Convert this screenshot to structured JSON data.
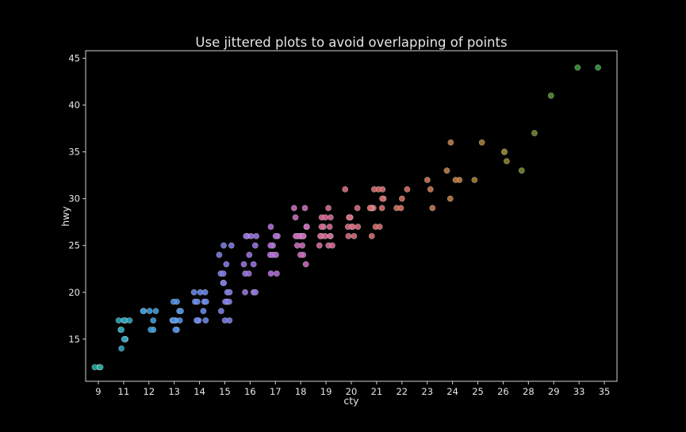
{
  "chart_data": {
    "type": "scatter",
    "title": "Use jittered plots to avoid overlapping of points",
    "xlabel": "cty",
    "ylabel": "hwy",
    "x_categories": [
      "9",
      "11",
      "12",
      "13",
      "14",
      "15",
      "16",
      "17",
      "18",
      "19",
      "20",
      "21",
      "22",
      "23",
      "24",
      "25",
      "26",
      "28",
      "29",
      "33",
      "35"
    ],
    "yticks": [
      15,
      20,
      25,
      30,
      35,
      40,
      45
    ],
    "ylim": [
      10.5,
      45.8
    ],
    "grid": false,
    "legend": "none",
    "colors": {
      "background": "#000000",
      "axes": "#cfcfcf",
      "text": "#e6e6e6",
      "9": "#27a899",
      "11": "#2aa3b7",
      "12": "#3a9ad8",
      "13": "#4a8ee6",
      "14": "#6484ea",
      "15": "#7a78e4",
      "16": "#9570dd",
      "17": "#b06ad6",
      "18": "#c968b8",
      "19": "#d46894",
      "20": "#d56a7c",
      "21": "#d46c6c",
      "22": "#d26f5e",
      "23": "#c97450",
      "24": "#bd7a40",
      "25": "#a67c32",
      "26": "#8c7f2a",
      "28": "#6f8a2c",
      "29": "#4f9030",
      "33": "#3c9538",
      "35": "#349a45"
    },
    "points": [
      {
        "x": "9",
        "y": 12
      },
      {
        "x": "9",
        "y": 12
      },
      {
        "x": "9",
        "y": 12
      },
      {
        "x": "9",
        "y": 12
      },
      {
        "x": "11",
        "y": 17
      },
      {
        "x": "11",
        "y": 17
      },
      {
        "x": "11",
        "y": 17
      },
      {
        "x": "11",
        "y": 17
      },
      {
        "x": "11",
        "y": 17
      },
      {
        "x": "11",
        "y": 16
      },
      {
        "x": "11",
        "y": 16
      },
      {
        "x": "11",
        "y": 15
      },
      {
        "x": "11",
        "y": 15
      },
      {
        "x": "11",
        "y": 15
      },
      {
        "x": "11",
        "y": 15
      },
      {
        "x": "11",
        "y": 15
      },
      {
        "x": "11",
        "y": 14
      },
      {
        "x": "12",
        "y": 18
      },
      {
        "x": "12",
        "y": 18
      },
      {
        "x": "12",
        "y": 18
      },
      {
        "x": "12",
        "y": 18
      },
      {
        "x": "12",
        "y": 17
      },
      {
        "x": "12",
        "y": 16
      },
      {
        "x": "12",
        "y": 16
      },
      {
        "x": "13",
        "y": 19
      },
      {
        "x": "13",
        "y": 19
      },
      {
        "x": "13",
        "y": 18
      },
      {
        "x": "13",
        "y": 18
      },
      {
        "x": "13",
        "y": 17
      },
      {
        "x": "13",
        "y": 17
      },
      {
        "x": "13",
        "y": 17
      },
      {
        "x": "13",
        "y": 17
      },
      {
        "x": "13",
        "y": 17
      },
      {
        "x": "13",
        "y": 17
      },
      {
        "x": "13",
        "y": 16
      },
      {
        "x": "13",
        "y": 16
      },
      {
        "x": "14",
        "y": 20
      },
      {
        "x": "14",
        "y": 20
      },
      {
        "x": "14",
        "y": 20
      },
      {
        "x": "14",
        "y": 19
      },
      {
        "x": "14",
        "y": 19
      },
      {
        "x": "14",
        "y": 19
      },
      {
        "x": "14",
        "y": 19
      },
      {
        "x": "14",
        "y": 18
      },
      {
        "x": "14",
        "y": 17
      },
      {
        "x": "14",
        "y": 17
      },
      {
        "x": "14",
        "y": 17
      },
      {
        "x": "14",
        "y": 17
      },
      {
        "x": "15",
        "y": 25
      },
      {
        "x": "15",
        "y": 25
      },
      {
        "x": "15",
        "y": 24
      },
      {
        "x": "15",
        "y": 23
      },
      {
        "x": "15",
        "y": 22
      },
      {
        "x": "15",
        "y": 22
      },
      {
        "x": "15",
        "y": 21
      },
      {
        "x": "15",
        "y": 21
      },
      {
        "x": "15",
        "y": 20
      },
      {
        "x": "15",
        "y": 20
      },
      {
        "x": "15",
        "y": 19
      },
      {
        "x": "15",
        "y": 19
      },
      {
        "x": "15",
        "y": 19
      },
      {
        "x": "15",
        "y": 19
      },
      {
        "x": "15",
        "y": 18
      },
      {
        "x": "15",
        "y": 17
      },
      {
        "x": "15",
        "y": 17
      },
      {
        "x": "16",
        "y": 26
      },
      {
        "x": "16",
        "y": 26
      },
      {
        "x": "16",
        "y": 26
      },
      {
        "x": "16",
        "y": 26
      },
      {
        "x": "16",
        "y": 25
      },
      {
        "x": "16",
        "y": 24
      },
      {
        "x": "16",
        "y": 23
      },
      {
        "x": "16",
        "y": 23
      },
      {
        "x": "16",
        "y": 22
      },
      {
        "x": "16",
        "y": 22
      },
      {
        "x": "16",
        "y": 20
      },
      {
        "x": "16",
        "y": 20
      },
      {
        "x": "16",
        "y": 20
      },
      {
        "x": "17",
        "y": 27
      },
      {
        "x": "17",
        "y": 26
      },
      {
        "x": "17",
        "y": 26
      },
      {
        "x": "17",
        "y": 25
      },
      {
        "x": "17",
        "y": 25
      },
      {
        "x": "17",
        "y": 24
      },
      {
        "x": "17",
        "y": 24
      },
      {
        "x": "17",
        "y": 24
      },
      {
        "x": "17",
        "y": 22
      },
      {
        "x": "17",
        "y": 22
      },
      {
        "x": "18",
        "y": 29
      },
      {
        "x": "18",
        "y": 29
      },
      {
        "x": "18",
        "y": 28
      },
      {
        "x": "18",
        "y": 27
      },
      {
        "x": "18",
        "y": 27
      },
      {
        "x": "18",
        "y": 26
      },
      {
        "x": "18",
        "y": 26
      },
      {
        "x": "18",
        "y": 26
      },
      {
        "x": "18",
        "y": 26
      },
      {
        "x": "18",
        "y": 26
      },
      {
        "x": "18",
        "y": 26
      },
      {
        "x": "18",
        "y": 26
      },
      {
        "x": "18",
        "y": 25
      },
      {
        "x": "18",
        "y": 25
      },
      {
        "x": "18",
        "y": 24
      },
      {
        "x": "18",
        "y": 24
      },
      {
        "x": "18",
        "y": 23
      },
      {
        "x": "19",
        "y": 29
      },
      {
        "x": "19",
        "y": 28
      },
      {
        "x": "19",
        "y": 28
      },
      {
        "x": "19",
        "y": 28
      },
      {
        "x": "19",
        "y": 27
      },
      {
        "x": "19",
        "y": 27
      },
      {
        "x": "19",
        "y": 27
      },
      {
        "x": "19",
        "y": 26
      },
      {
        "x": "19",
        "y": 26
      },
      {
        "x": "19",
        "y": 26
      },
      {
        "x": "19",
        "y": 26
      },
      {
        "x": "19",
        "y": 26
      },
      {
        "x": "19",
        "y": 25
      },
      {
        "x": "19",
        "y": 25
      },
      {
        "x": "19",
        "y": 25
      },
      {
        "x": "20",
        "y": 31
      },
      {
        "x": "20",
        "y": 29
      },
      {
        "x": "20",
        "y": 28
      },
      {
        "x": "20",
        "y": 28
      },
      {
        "x": "20",
        "y": 28
      },
      {
        "x": "20",
        "y": 27
      },
      {
        "x": "20",
        "y": 27
      },
      {
        "x": "20",
        "y": 27
      },
      {
        "x": "20",
        "y": 27
      },
      {
        "x": "20",
        "y": 26
      },
      {
        "x": "20",
        "y": 26
      },
      {
        "x": "21",
        "y": 31
      },
      {
        "x": "21",
        "y": 31
      },
      {
        "x": "21",
        "y": 31
      },
      {
        "x": "21",
        "y": 30
      },
      {
        "x": "21",
        "y": 30
      },
      {
        "x": "21",
        "y": 29
      },
      {
        "x": "21",
        "y": 29
      },
      {
        "x": "21",
        "y": 29
      },
      {
        "x": "21",
        "y": 29
      },
      {
        "x": "21",
        "y": 29
      },
      {
        "x": "21",
        "y": 29
      },
      {
        "x": "21",
        "y": 27
      },
      {
        "x": "21",
        "y": 27
      },
      {
        "x": "21",
        "y": 26
      },
      {
        "x": "22",
        "y": 31
      },
      {
        "x": "22",
        "y": 30
      },
      {
        "x": "22",
        "y": 29
      },
      {
        "x": "22",
        "y": 29
      },
      {
        "x": "23",
        "y": 32
      },
      {
        "x": "23",
        "y": 31
      },
      {
        "x": "23",
        "y": 29
      },
      {
        "x": "24",
        "y": 36
      },
      {
        "x": "24",
        "y": 33
      },
      {
        "x": "24",
        "y": 32
      },
      {
        "x": "24",
        "y": 32
      },
      {
        "x": "24",
        "y": 30
      },
      {
        "x": "25",
        "y": 36
      },
      {
        "x": "25",
        "y": 32
      },
      {
        "x": "26",
        "y": 35
      },
      {
        "x": "26",
        "y": 35
      },
      {
        "x": "26",
        "y": 34
      },
      {
        "x": "28",
        "y": 37
      },
      {
        "x": "28",
        "y": 33
      },
      {
        "x": "29",
        "y": 41
      },
      {
        "x": "33",
        "y": 44
      },
      {
        "x": "35",
        "y": 44
      }
    ]
  }
}
